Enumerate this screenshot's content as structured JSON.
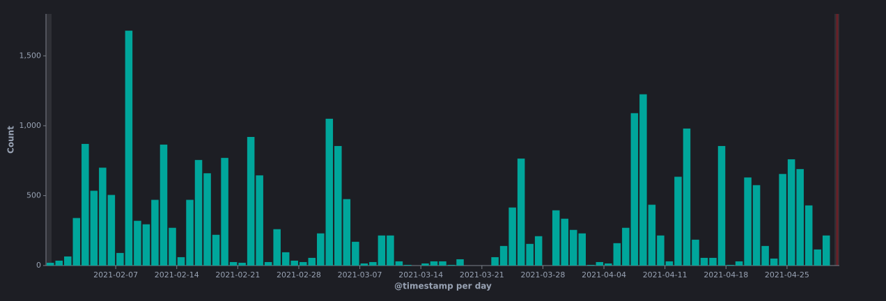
{
  "chart_data": {
    "type": "bar",
    "x_label": "@timestamp per day",
    "y_label": "Count",
    "color": "#00a69b",
    "x": [
      "2021-01-30",
      "2021-01-31",
      "2021-02-01",
      "2021-02-02",
      "2021-02-03",
      "2021-02-04",
      "2021-02-05",
      "2021-02-06",
      "2021-02-07",
      "2021-02-08",
      "2021-02-09",
      "2021-02-10",
      "2021-02-11",
      "2021-02-12",
      "2021-02-13",
      "2021-02-14",
      "2021-02-15",
      "2021-02-16",
      "2021-02-17",
      "2021-02-18",
      "2021-02-19",
      "2021-02-20",
      "2021-02-21",
      "2021-02-22",
      "2021-02-23",
      "2021-02-24",
      "2021-02-25",
      "2021-02-26",
      "2021-02-27",
      "2021-02-28",
      "2021-03-01",
      "2021-03-02",
      "2021-03-03",
      "2021-03-04",
      "2021-03-05",
      "2021-03-06",
      "2021-03-07",
      "2021-03-08",
      "2021-03-09",
      "2021-03-10",
      "2021-03-11",
      "2021-03-12",
      "2021-03-13",
      "2021-03-14",
      "2021-03-15",
      "2021-03-16",
      "2021-03-17",
      "2021-03-18",
      "2021-03-19",
      "2021-03-20",
      "2021-03-21",
      "2021-03-22",
      "2021-03-23",
      "2021-03-24",
      "2021-03-25",
      "2021-03-26",
      "2021-03-27",
      "2021-03-28",
      "2021-03-29",
      "2021-03-30",
      "2021-03-31",
      "2021-04-01",
      "2021-04-02",
      "2021-04-03",
      "2021-04-04",
      "2021-04-05",
      "2021-04-06",
      "2021-04-07",
      "2021-04-08",
      "2021-04-09",
      "2021-04-10",
      "2021-04-11",
      "2021-04-12",
      "2021-04-13",
      "2021-04-14",
      "2021-04-15",
      "2021-04-16",
      "2021-04-17",
      "2021-04-18",
      "2021-04-19",
      "2021-04-20",
      "2021-04-21",
      "2021-04-22",
      "2021-04-23",
      "2021-04-24",
      "2021-04-25",
      "2021-04-26",
      "2021-04-27",
      "2021-04-28",
      "2021-04-29"
    ],
    "values": [
      20,
      35,
      65,
      340,
      870,
      535,
      700,
      505,
      90,
      1680,
      320,
      295,
      470,
      865,
      270,
      60,
      470,
      755,
      660,
      220,
      770,
      25,
      20,
      920,
      645,
      25,
      260,
      95,
      35,
      25,
      55,
      230,
      1050,
      855,
      475,
      170,
      15,
      25,
      215,
      215,
      30,
      5,
      0,
      15,
      30,
      30,
      5,
      45,
      0,
      0,
      0,
      60,
      140,
      415,
      765,
      155,
      210,
      0,
      395,
      335,
      255,
      230,
      5,
      25,
      15,
      160,
      270,
      1090,
      1225,
      435,
      215,
      30,
      635,
      980,
      185,
      55,
      55,
      855,
      5,
      30,
      630,
      575,
      140,
      50,
      655,
      760,
      690,
      430,
      115,
      215
    ],
    "xlim": [
      "2021-01-30",
      "2021-05-01"
    ],
    "xticks": [
      "2021-02-07",
      "2021-02-14",
      "2021-02-21",
      "2021-02-28",
      "2021-03-07",
      "2021-03-14",
      "2021-03-21",
      "2021-03-28",
      "2021-04-04",
      "2021-04-11",
      "2021-04-18",
      "2021-04-25"
    ],
    "ylim": [
      0,
      1800
    ],
    "yticks": [
      0,
      500,
      {
        "value": 1000,
        "label": "1,000"
      },
      {
        "value": 1500,
        "label": "1,500"
      }
    ]
  }
}
